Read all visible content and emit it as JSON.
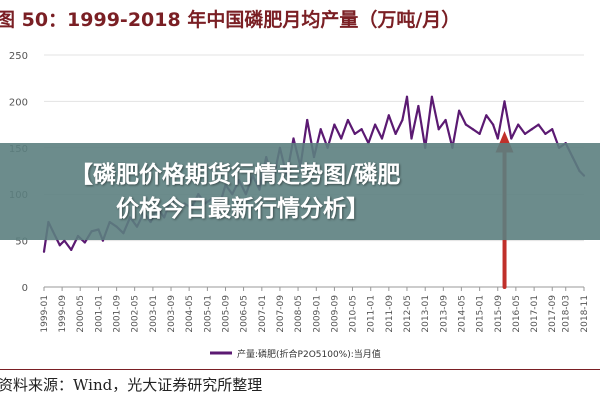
{
  "header": {
    "title": "图 50：1999-2018 年中国磷肥月均产量（万吨/月）"
  },
  "overlay": {
    "line1": "【磷肥价格期货行情走势图/磷肥",
    "line2": "价格今日最新行情分析】"
  },
  "footer": {
    "source": "资料来源：Wind，光大证券研究所整理"
  },
  "chart_data": {
    "type": "line",
    "title": "图 50：1999-2018 年中国磷肥月均产量（万吨/月）",
    "xlabel": "",
    "ylabel": "",
    "ylim": [
      0,
      250
    ],
    "yticks": [
      "0",
      "50",
      "100",
      "150",
      "200",
      "250"
    ],
    "xticks": [
      "1999-01",
      "1999-09",
      "2000-05",
      "2001-01",
      "2001-09",
      "2002-05",
      "2003-01",
      "2003-09",
      "2004-05",
      "2005-01",
      "2005-09",
      "2006-05",
      "2007-01",
      "2007-09",
      "2008-05",
      "2009-01",
      "2009-09",
      "2010-05",
      "2011-01",
      "2011-09",
      "2012-05",
      "2013-01",
      "2013-09",
      "2014-05",
      "2015-01",
      "2015-09",
      "2016-05",
      "2017-01",
      "2017-09",
      "2018-03",
      "2018-11"
    ],
    "grid": "horizontal",
    "legend_position": "bottom",
    "colors": {
      "series": "#5b1a72",
      "arrow": "#c0302a",
      "axis": "#999999"
    },
    "annotation": "red-arrow-at-2015-12",
    "series": [
      {
        "name": "产量:磷肥(折合P2O5100%):当月值",
        "x": [
          "1999-01",
          "1999-03",
          "1999-05",
          "1999-08",
          "1999-10",
          "2000-01",
          "2000-04",
          "2000-07",
          "2000-10",
          "2001-01",
          "2001-03",
          "2001-06",
          "2001-09",
          "2001-12",
          "2002-03",
          "2002-06",
          "2002-09",
          "2002-12",
          "2003-03",
          "2003-06",
          "2003-09",
          "2003-12",
          "2004-03",
          "2004-06",
          "2004-09",
          "2004-12",
          "2005-03",
          "2005-06",
          "2005-09",
          "2005-12",
          "2006-03",
          "2006-06",
          "2006-09",
          "2006-12",
          "2007-03",
          "2007-06",
          "2007-09",
          "2007-12",
          "2008-03",
          "2008-06",
          "2008-09",
          "2008-12",
          "2009-03",
          "2009-06",
          "2009-09",
          "2009-12",
          "2010-03",
          "2010-06",
          "2010-09",
          "2010-12",
          "2011-03",
          "2011-06",
          "2011-09",
          "2011-12",
          "2012-03",
          "2012-05",
          "2012-07",
          "2012-10",
          "2013-01",
          "2013-04",
          "2013-07",
          "2013-10",
          "2014-01",
          "2014-04",
          "2014-07",
          "2014-10",
          "2015-01",
          "2015-04",
          "2015-07",
          "2015-09",
          "2015-12",
          "2016-03",
          "2016-06",
          "2016-09",
          "2016-12",
          "2017-03",
          "2017-06",
          "2017-09",
          "2017-12",
          "2018-03",
          "2018-06",
          "2018-09",
          "2018-11"
        ],
        "values": [
          38,
          70,
          60,
          45,
          50,
          40,
          55,
          48,
          60,
          62,
          50,
          70,
          65,
          58,
          75,
          65,
          80,
          70,
          85,
          75,
          95,
          80,
          90,
          85,
          100,
          90,
          95,
          85,
          110,
          100,
          115,
          100,
          120,
          105,
          140,
          115,
          150,
          120,
          160,
          130,
          180,
          140,
          170,
          150,
          175,
          160,
          180,
          165,
          170,
          155,
          175,
          160,
          185,
          165,
          180,
          205,
          160,
          195,
          150,
          205,
          170,
          180,
          150,
          190,
          175,
          170,
          165,
          185,
          175,
          160,
          200,
          160,
          175,
          165,
          170,
          175,
          165,
          170,
          150,
          155,
          140,
          125,
          120
        ]
      }
    ]
  }
}
